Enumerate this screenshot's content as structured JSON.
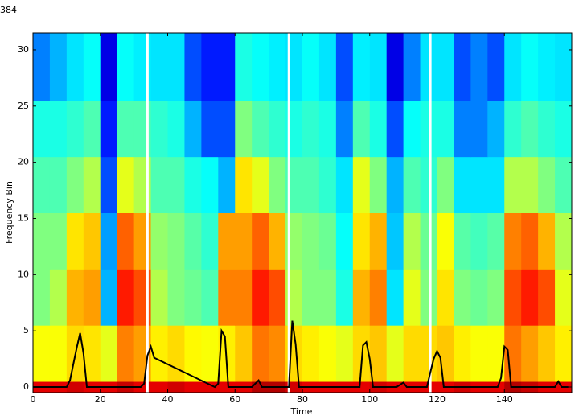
{
  "chart_data": {
    "type": "heatmap",
    "title": "384",
    "xlabel": "Time",
    "ylabel": "Frequency Bin",
    "colormap": "jet",
    "vlim": [
      0,
      1
    ],
    "xlim": [
      0,
      160
    ],
    "ylim": [
      -0.5,
      31.5
    ],
    "xticks": [
      0,
      20,
      40,
      60,
      80,
      100,
      120,
      140
    ],
    "yticks": [
      0,
      5,
      10,
      15,
      20,
      25,
      30
    ],
    "x_bins": [
      0,
      5,
      10,
      15,
      20,
      25,
      30,
      35,
      40,
      45,
      50,
      55,
      60,
      65,
      70,
      75,
      80,
      85,
      90,
      95,
      100,
      105,
      110,
      115,
      120,
      125,
      130,
      135,
      140,
      145,
      150,
      155,
      160
    ],
    "y_bins": [
      -0.5,
      0.5,
      5.5,
      10.5,
      15.5,
      20.5,
      25.5,
      31.5
    ],
    "values": [
      [
        0.9,
        0.9,
        0.92,
        0.9,
        0.9,
        0.93,
        0.9,
        0.9,
        0.92,
        0.9,
        0.9,
        0.9,
        0.9,
        0.95,
        0.95,
        0.92,
        0.9,
        0.9,
        0.9,
        0.9,
        0.92,
        0.9,
        0.9,
        0.9,
        0.9,
        0.92,
        0.9,
        0.9,
        0.95,
        0.93,
        0.9,
        0.9
      ],
      [
        0.62,
        0.62,
        0.66,
        0.65,
        0.6,
        0.75,
        0.72,
        0.64,
        0.66,
        0.63,
        0.62,
        0.64,
        0.68,
        0.76,
        0.74,
        0.66,
        0.64,
        0.62,
        0.6,
        0.66,
        0.68,
        0.6,
        0.66,
        0.66,
        0.68,
        0.64,
        0.62,
        0.62,
        0.76,
        0.72,
        0.68,
        0.64
      ],
      [
        0.5,
        0.55,
        0.7,
        0.72,
        0.3,
        0.85,
        0.8,
        0.55,
        0.5,
        0.48,
        0.45,
        0.75,
        0.75,
        0.85,
        0.8,
        0.55,
        0.5,
        0.5,
        0.4,
        0.7,
        0.75,
        0.35,
        0.6,
        0.5,
        0.65,
        0.5,
        0.48,
        0.5,
        0.8,
        0.85,
        0.8,
        0.6
      ],
      [
        0.5,
        0.5,
        0.65,
        0.68,
        0.28,
        0.78,
        0.72,
        0.52,
        0.5,
        0.46,
        0.42,
        0.72,
        0.72,
        0.78,
        0.7,
        0.52,
        0.5,
        0.48,
        0.38,
        0.65,
        0.7,
        0.32,
        0.55,
        0.48,
        0.62,
        0.46,
        0.44,
        0.46,
        0.75,
        0.78,
        0.7,
        0.55
      ],
      [
        0.45,
        0.45,
        0.5,
        0.55,
        0.2,
        0.6,
        0.55,
        0.45,
        0.45,
        0.4,
        0.38,
        0.3,
        0.65,
        0.6,
        0.5,
        0.45,
        0.45,
        0.42,
        0.35,
        0.6,
        0.5,
        0.3,
        0.45,
        0.42,
        0.5,
        0.35,
        0.35,
        0.35,
        0.55,
        0.55,
        0.5,
        0.45
      ],
      [
        0.4,
        0.4,
        0.42,
        0.45,
        0.15,
        0.45,
        0.45,
        0.42,
        0.4,
        0.3,
        0.2,
        0.2,
        0.5,
        0.45,
        0.42,
        0.4,
        0.42,
        0.4,
        0.25,
        0.45,
        0.4,
        0.2,
        0.38,
        0.4,
        0.4,
        0.25,
        0.25,
        0.3,
        0.42,
        0.45,
        0.42,
        0.4
      ],
      [
        0.25,
        0.3,
        0.35,
        0.38,
        0.1,
        0.38,
        0.36,
        0.35,
        0.35,
        0.2,
        0.15,
        0.15,
        0.4,
        0.38,
        0.36,
        0.35,
        0.38,
        0.35,
        0.2,
        0.36,
        0.35,
        0.1,
        0.25,
        0.35,
        0.35,
        0.2,
        0.25,
        0.2,
        0.35,
        0.38,
        0.36,
        0.35
      ]
    ],
    "vlines": [
      34,
      76,
      118
    ],
    "vline_color": "#ffffff",
    "line": {
      "color": "#000000",
      "x": [
        0,
        10,
        11,
        13,
        14,
        15,
        16,
        32,
        33,
        34,
        35,
        36,
        54,
        55,
        56,
        57,
        58,
        65,
        67,
        68,
        75,
        76,
        77,
        78,
        79,
        97,
        98,
        99,
        100,
        101,
        108,
        110,
        111,
        117,
        118,
        119,
        120,
        121,
        122,
        138,
        139,
        140,
        141,
        142,
        155,
        156,
        157,
        159
      ],
      "y": [
        0,
        0,
        0.6,
        3.5,
        4.8,
        3.0,
        0,
        0,
        0.3,
        2.8,
        3.6,
        2.6,
        0,
        0.3,
        5.0,
        4.5,
        0,
        0,
        0.6,
        0,
        0,
        0,
        5.9,
        3.8,
        0,
        0,
        3.7,
        4.0,
        2.5,
        0,
        0,
        0.4,
        0,
        0,
        1.3,
        2.5,
        3.2,
        2.6,
        0,
        0,
        0.8,
        3.6,
        3.3,
        0,
        0,
        0.5,
        0,
        0
      ]
    }
  }
}
